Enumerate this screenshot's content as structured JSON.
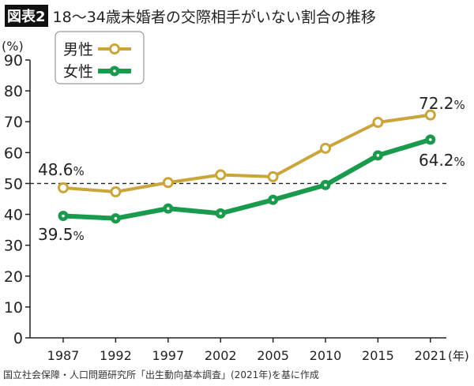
{
  "title_badge": "図表2",
  "title": "18〜34歳未婚者の交際相手がいない割合の推移",
  "source": "国立社会保障・人口問題研究所「出生動向基本調査」(2021年)を基に作成",
  "chart_data": {
    "type": "line",
    "categories": [
      "1987",
      "1992",
      "1997",
      "2002",
      "2005",
      "2010",
      "2015",
      "2021"
    ],
    "xlabel_unit": "(年)",
    "ylabel_unit": "(%)",
    "ylim": [
      0,
      90
    ],
    "yticks": [
      0,
      10,
      20,
      30,
      40,
      50,
      60,
      70,
      80,
      90
    ],
    "reference_line": 50,
    "legend_placement": "top-left",
    "series": [
      {
        "name": "男性",
        "color": "#c9a53c",
        "values": [
          48.6,
          47.3,
          50.3,
          52.8,
          52.2,
          61.4,
          69.8,
          72.2
        ]
      },
      {
        "name": "女性",
        "color": "#1a9a4c",
        "values": [
          39.5,
          38.7,
          41.9,
          40.3,
          44.7,
          49.5,
          59.1,
          64.2
        ]
      }
    ],
    "annotations": [
      {
        "series": 0,
        "index": 0,
        "text": "48.6",
        "unit": "%"
      },
      {
        "series": 0,
        "index": 7,
        "text": "72.2",
        "unit": "%"
      },
      {
        "series": 1,
        "index": 0,
        "text": "39.5",
        "unit": "%"
      },
      {
        "series": 1,
        "index": 7,
        "text": "64.2",
        "unit": "%"
      }
    ]
  }
}
